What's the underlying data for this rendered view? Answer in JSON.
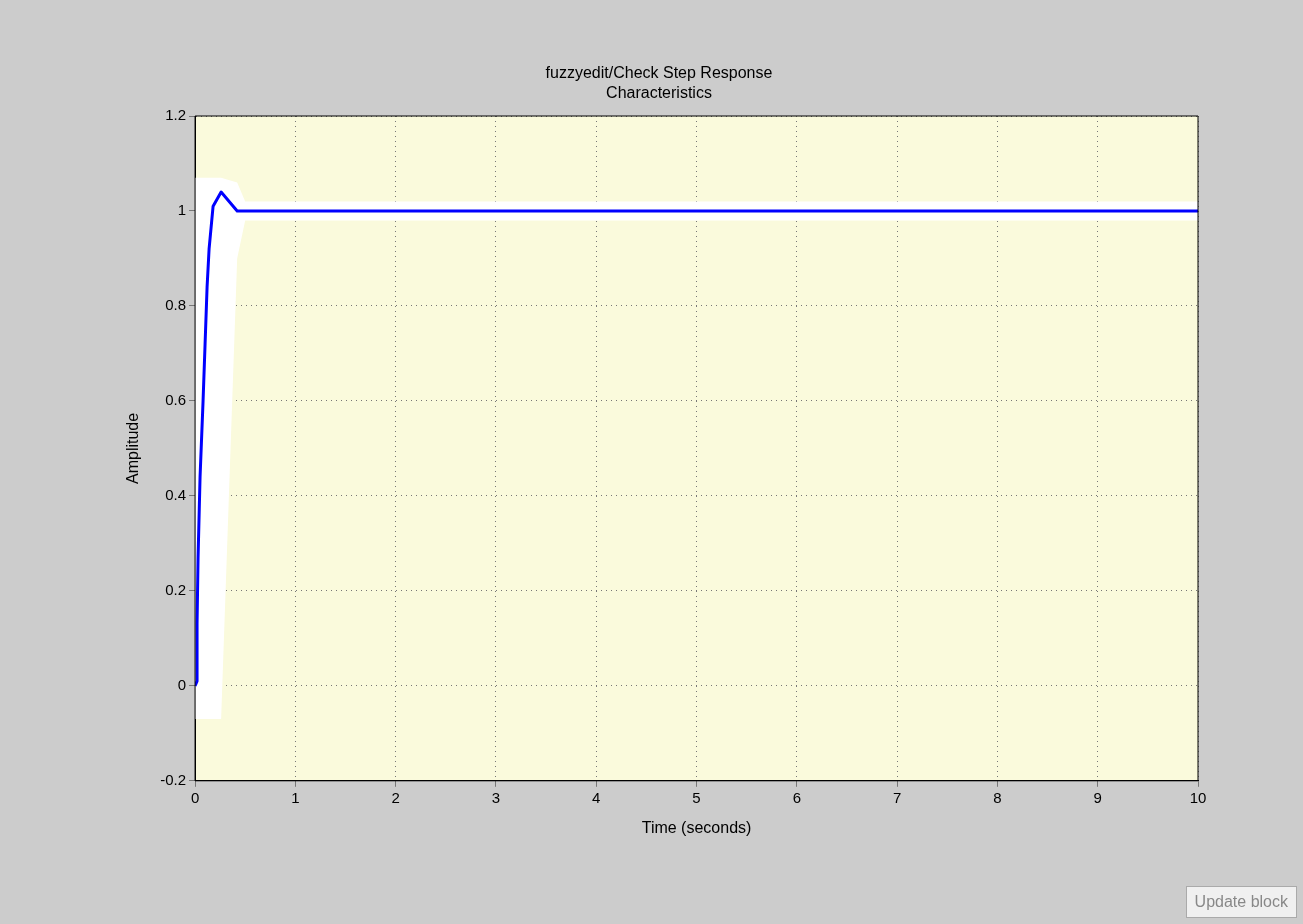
{
  "chart_data": {
    "type": "line",
    "title": "fuzzyedit/Check Step Response Characteristics",
    "xlabel": "Time (seconds)",
    "ylabel": "Amplitude",
    "series": [
      {
        "color": "#0000ff",
        "x": [
          0,
          0.02,
          0.02,
          0.03,
          0.05,
          0.08,
          0.1,
          0.12,
          0.14,
          0.18,
          0.26,
          0.42,
          0.5,
          10
        ],
        "values": [
          0,
          0.01,
          0.13,
          0.27,
          0.44,
          0.6,
          0.72,
          0.84,
          0.92,
          1.01,
          1.04,
          1.0,
          1.0,
          1.0
        ],
        "lower": [
          -0.07,
          -0.07,
          -0.07,
          -0.07,
          -0.07,
          -0.07,
          -0.07,
          -0.07,
          -0.07,
          -0.07,
          -0.07,
          0.9,
          0.98,
          0.98
        ],
        "upper": [
          1.07,
          1.07,
          1.07,
          1.07,
          1.07,
          1.07,
          1.07,
          1.07,
          1.07,
          1.07,
          1.07,
          1.06,
          1.02,
          1.02
        ]
      }
    ],
    "xlim": [
      0,
      10
    ],
    "xticks": [
      0,
      1,
      2,
      3,
      4,
      5,
      6,
      7,
      8,
      9,
      10
    ],
    "ylim": [
      -0.2,
      1.2
    ],
    "yticks": [
      -0.2,
      0,
      0.2,
      0.4,
      0.6,
      0.8,
      1,
      1.2
    ],
    "grid": true,
    "legend": false,
    "marker": "none",
    "line_style": "solid",
    "annotations": [
      "Update block"
    ]
  }
}
